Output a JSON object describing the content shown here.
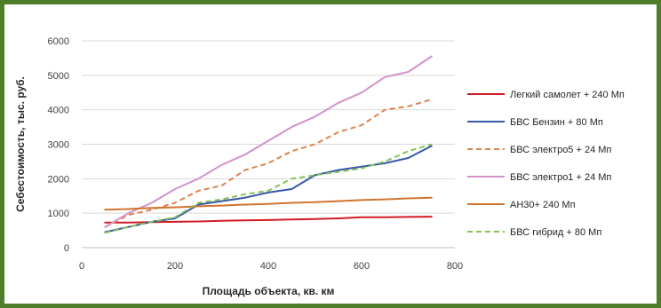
{
  "chart_data": {
    "type": "line",
    "xlabel": "Площадь объекта, кв. км",
    "ylabel": "Себестоимость, тыс. руб.",
    "xlim": [
      0,
      800
    ],
    "ylim": [
      0,
      6000
    ],
    "xticks": [
      0,
      200,
      400,
      600,
      800
    ],
    "yticks": [
      0,
      1000,
      2000,
      3000,
      4000,
      5000,
      6000
    ],
    "grid": "horizontal",
    "legend_position": "right",
    "series": [
      {
        "name": "Легкий самолет + 240 Мп",
        "color": "#d11c24",
        "dash": "solid",
        "x": [
          50,
          100,
          150,
          200,
          250,
          300,
          350,
          400,
          450,
          500,
          550,
          600,
          650,
          700,
          750
        ],
        "y": [
          730,
          730,
          740,
          750,
          760,
          780,
          790,
          800,
          820,
          830,
          850,
          880,
          880,
          890,
          900
        ]
      },
      {
        "name": "БВС Бензин + 80 Мп",
        "color": "#3559a8",
        "dash": "solid",
        "x": [
          50,
          100,
          150,
          200,
          250,
          300,
          350,
          400,
          450,
          500,
          550,
          600,
          650,
          700,
          750
        ],
        "y": [
          450,
          600,
          750,
          850,
          1250,
          1350,
          1450,
          1600,
          1700,
          2100,
          2250,
          2350,
          2450,
          2600,
          2950
        ]
      },
      {
        "name": "БВС электро5  + 24 Мп",
        "color": "#e0824a",
        "dash": "dashed",
        "x": [
          50,
          100,
          150,
          200,
          250,
          300,
          350,
          400,
          450,
          500,
          550,
          600,
          650,
          700,
          750
        ],
        "y": [
          600,
          950,
          1100,
          1300,
          1650,
          1800,
          2250,
          2450,
          2800,
          3000,
          3350,
          3550,
          4000,
          4100,
          4300
        ]
      },
      {
        "name": "БВС электро1 + 24 Мп",
        "color": "#d492c8",
        "dash": "solid",
        "x": [
          50,
          100,
          150,
          200,
          250,
          300,
          350,
          400,
          450,
          500,
          550,
          600,
          650,
          700,
          750
        ],
        "y": [
          600,
          1000,
          1300,
          1700,
          2000,
          2400,
          2700,
          3100,
          3500,
          3800,
          4200,
          4500,
          4950,
          5100,
          5550
        ]
      },
      {
        "name": "АН30+ 240 Мп",
        "color": "#d2742f",
        "dash": "solid",
        "x": [
          50,
          100,
          150,
          200,
          250,
          300,
          350,
          400,
          450,
          500,
          550,
          600,
          650,
          700,
          750
        ],
        "y": [
          1100,
          1120,
          1150,
          1170,
          1200,
          1220,
          1250,
          1270,
          1300,
          1320,
          1350,
          1380,
          1400,
          1430,
          1450
        ]
      },
      {
        "name": "БВС гибрид + 80 Мп",
        "color": "#84c44f",
        "dash": "dashed",
        "x": [
          50,
          100,
          150,
          200,
          250,
          300,
          350,
          400,
          450,
          500,
          550,
          600,
          650,
          700,
          750
        ],
        "y": [
          430,
          600,
          750,
          880,
          1300,
          1400,
          1550,
          1650,
          2000,
          2100,
          2200,
          2300,
          2500,
          2800,
          3000
        ]
      }
    ]
  }
}
